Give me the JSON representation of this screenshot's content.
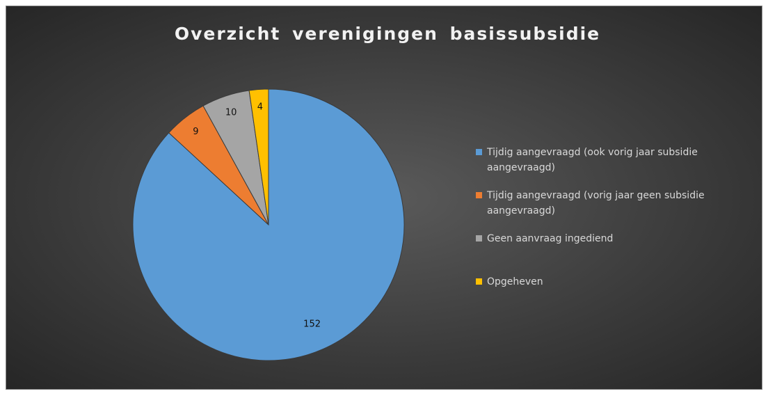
{
  "chart_data": {
    "type": "pie",
    "title": "Overzicht verenigingen basissubsidie",
    "categories": [
      "Tijdig aangevraagd (ook vorig jaar subsidie aangevraagd)",
      "Tijdig aangevraagd (vorig jaar geen subsidie aangevraagd)",
      "Geen aanvraag ingediend",
      "Opgeheven"
    ],
    "values": [
      152,
      9,
      10,
      4
    ],
    "colors": [
      "#5b9bd5",
      "#ed7d31",
      "#a5a5a5",
      "#ffc000"
    ],
    "legend": "right"
  }
}
